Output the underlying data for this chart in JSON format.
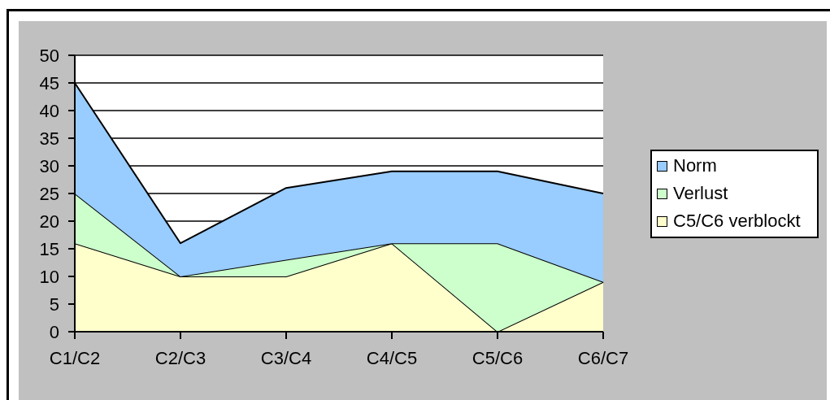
{
  "chart_data": {
    "type": "area",
    "stacked": true,
    "categories": [
      "C1/C2",
      "C2/C3",
      "C3/C4",
      "C4/C5",
      "C5/C6",
      "C6/C7"
    ],
    "series": [
      {
        "name": "C5/C6 verblockt",
        "color": "#ffffcc",
        "values": [
          16,
          10,
          10,
          16,
          0,
          9
        ]
      },
      {
        "name": "Verlust",
        "color": "#ccffcc",
        "values": [
          9,
          0,
          3,
          0,
          16,
          0
        ]
      },
      {
        "name": "Norm",
        "color": "#99ccff",
        "values": [
          20,
          6,
          13,
          13,
          13,
          16
        ]
      }
    ],
    "ylim": [
      0,
      50
    ],
    "yticks": [
      0,
      5,
      10,
      15,
      20,
      25,
      30,
      35,
      40,
      45,
      50
    ],
    "grid": "y",
    "legend": "right"
  }
}
